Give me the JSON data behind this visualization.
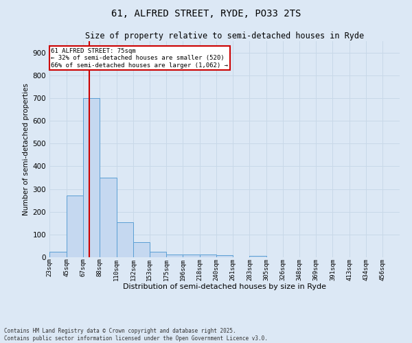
{
  "title1": "61, ALFRED STREET, RYDE, PO33 2TS",
  "title2": "Size of property relative to semi-detached houses in Ryde",
  "xlabel": "Distribution of semi-detached houses by size in Ryde",
  "ylabel": "Number of semi-detached properties",
  "footnote": "Contains HM Land Registry data © Crown copyright and database right 2025.\nContains public sector information licensed under the Open Government Licence v3.0.",
  "bin_labels": [
    "23sqm",
    "45sqm",
    "67sqm",
    "88sqm",
    "110sqm",
    "132sqm",
    "153sqm",
    "175sqm",
    "196sqm",
    "218sqm",
    "240sqm",
    "261sqm",
    "283sqm",
    "305sqm",
    "326sqm",
    "348sqm",
    "369sqm",
    "391sqm",
    "413sqm",
    "434sqm",
    "456sqm"
  ],
  "bar_values": [
    25,
    270,
    700,
    350,
    155,
    65,
    25,
    13,
    12,
    12,
    10,
    0,
    5,
    0,
    0,
    0,
    0,
    0,
    0,
    0,
    0
  ],
  "bar_color": "#c5d8f0",
  "bar_edge_color": "#5a9fd4",
  "grid_color": "#c8d8e8",
  "background_color": "#dce8f5",
  "property_line_x": 75,
  "bin_edges": [
    23,
    45,
    67,
    88,
    110,
    132,
    153,
    175,
    196,
    218,
    240,
    261,
    283,
    305,
    326,
    348,
    369,
    391,
    413,
    434,
    456
  ],
  "annotation_text": "61 ALFRED STREET: 75sqm\n← 32% of semi-detached houses are smaller (520)\n66% of semi-detached houses are larger (1,062) →",
  "annotation_box_color": "#ffffff",
  "annotation_border_color": "#cc0000",
  "red_line_color": "#cc0000",
  "ylim": [
    0,
    950
  ],
  "yticks": [
    0,
    100,
    200,
    300,
    400,
    500,
    600,
    700,
    800,
    900
  ]
}
